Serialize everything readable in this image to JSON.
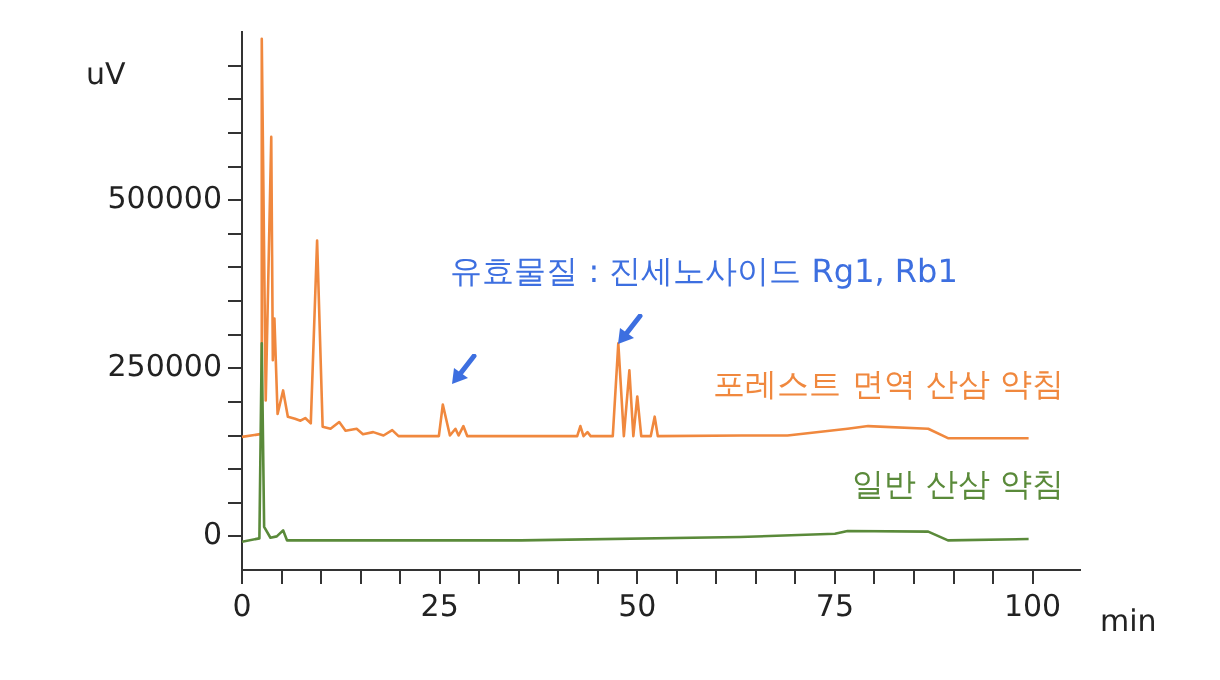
{
  "chart_data": {
    "type": "line",
    "xlabel": "min",
    "ylabel": "uV",
    "annotations": [
      "유효물질 : 진세노사이드 Rg1, Rb1"
    ],
    "xlim": [
      0,
      106
    ],
    "ylim": [
      -50000,
      750000
    ],
    "xticks": [
      0,
      {
        "value": 5,
        "label": null
      },
      {
        "value": 10,
        "label": null
      },
      {
        "value": 15,
        "label": null
      },
      {
        "value": 20,
        "label": null
      },
      25,
      {
        "value": 30,
        "label": null
      },
      {
        "value": 35,
        "label": null
      },
      {
        "value": 40,
        "label": null
      },
      {
        "value": 45,
        "label": null
      },
      50,
      {
        "value": 55,
        "label": null
      },
      {
        "value": 60,
        "label": null
      },
      {
        "value": 65,
        "label": null
      },
      {
        "value": 70,
        "label": null
      },
      75,
      {
        "value": 80,
        "label": null
      },
      {
        "value": 85,
        "label": null
      },
      {
        "value": 90,
        "label": null
      },
      {
        "value": 95,
        "label": null
      },
      100
    ],
    "yticks": [
      0,
      {
        "value": 50000,
        "label": null
      },
      {
        "value": 100000,
        "label": null
      },
      {
        "value": 150000,
        "label": null
      },
      {
        "value": 200000,
        "label": null
      },
      250000,
      {
        "value": 300000,
        "label": null
      },
      {
        "value": 350000,
        "label": null
      },
      {
        "value": 400000,
        "label": null
      },
      {
        "value": 450000,
        "label": null
      },
      500000,
      {
        "value": 550000,
        "label": null
      },
      {
        "value": 600000,
        "label": null
      },
      {
        "value": 650000,
        "label": null
      },
      {
        "value": 700000,
        "label": null
      }
    ],
    "grid": false,
    "legend": false,
    "marker": "none",
    "line_style": "solid",
    "series": [
      {
        "name": "포레스트 면역 산삼 약침",
        "color": "#f0883e",
        "x": [
          0,
          2.3,
          2.5,
          3.0,
          3.7,
          3.9,
          4.1,
          4.5,
          5.2,
          5.8,
          6.7,
          7.4,
          8.0,
          8.7,
          9.5,
          10.2,
          11.2,
          12.3,
          13.1,
          14.5,
          15.3,
          16.6,
          17.9,
          19.0,
          19.8,
          24.9,
          25.4,
          26.3,
          27.0,
          27.4,
          28.0,
          28.5,
          42.4,
          42.8,
          43.2,
          43.7,
          44.1,
          46.9,
          47.6,
          48.3,
          49.0,
          49.5,
          50.0,
          50.5,
          51.7,
          52.2,
          52.6,
          63.2,
          69.0,
          76.6,
          79.2,
          86.8,
          89.3,
          99.5
        ],
        "values": [
          148000,
          152000,
          740000,
          202000,
          594000,
          262000,
          324000,
          182000,
          217000,
          178000,
          175000,
          172000,
          176000,
          168000,
          440000,
          163000,
          160000,
          170000,
          157000,
          160000,
          152000,
          155000,
          150000,
          158000,
          149000,
          149000,
          196000,
          150000,
          160000,
          150000,
          164000,
          149000,
          149000,
          164000,
          149000,
          155000,
          149000,
          149000,
          287000,
          149000,
          247000,
          149000,
          208000,
          149000,
          149000,
          178000,
          149000,
          150000,
          150000,
          160000,
          164000,
          160000,
          146000,
          146000
        ]
      },
      {
        "name": "일반 산삼 약침",
        "color": "#5a8a3a",
        "x": [
          0,
          2.2,
          2.5,
          2.8,
          3.6,
          4.4,
          5.2,
          5.7,
          35.3,
          63.0,
          75.0,
          76.6,
          86.8,
          89.3,
          99.5
        ],
        "values": [
          -8000,
          -3000,
          287000,
          14000,
          -2000,
          0,
          9000,
          -6000,
          -6000,
          -1000,
          4000,
          8000,
          7000,
          -6000,
          -4000
        ]
      }
    ]
  }
}
